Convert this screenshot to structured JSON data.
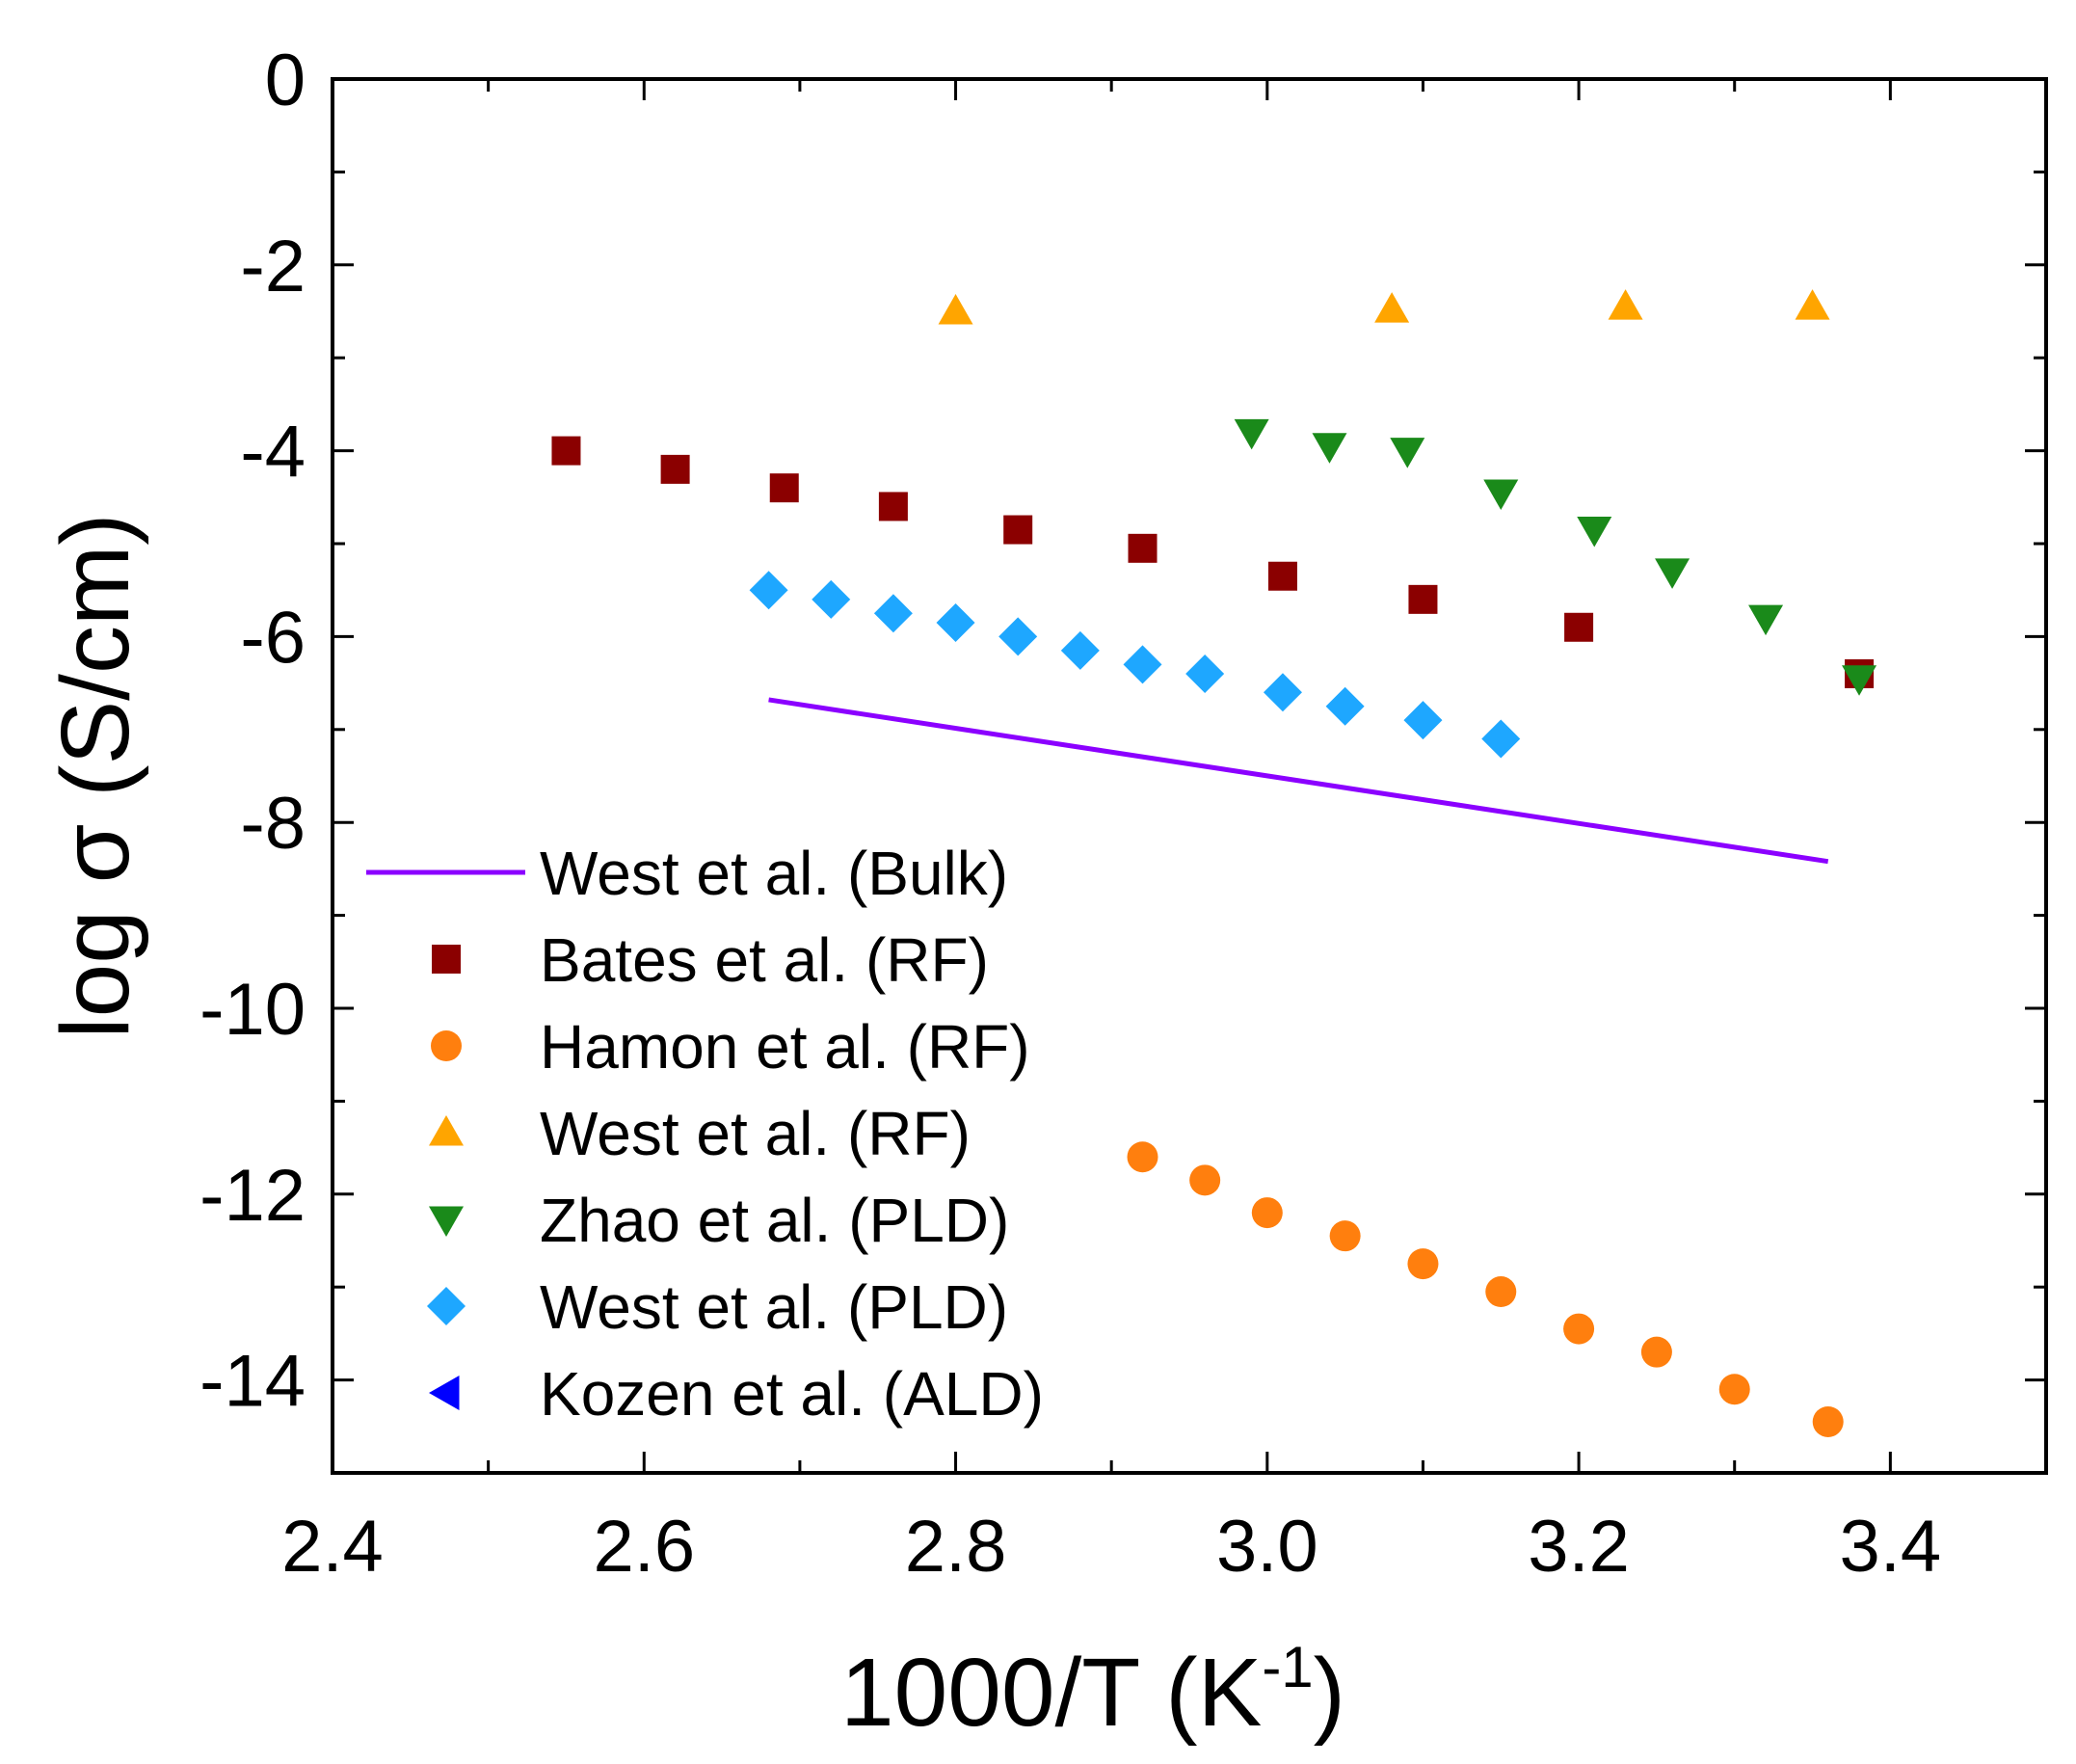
{
  "chart_data": {
    "type": "scatter",
    "title": "",
    "xlabel": "1000/T (K",
    "xlabel_sup": "-1",
    "xlabel_close": ")",
    "ylabel": "log σ (S/cm)",
    "xlim": [
      2.4,
      3.5
    ],
    "ylim": [
      -15,
      0
    ],
    "xticks": [
      2.4,
      2.6,
      2.8,
      3.0,
      3.2,
      3.4
    ],
    "xtick_labels": [
      "2.4",
      "2.6",
      "2.8",
      "3.0",
      "3.2",
      "3.4"
    ],
    "yticks": [
      0,
      -2,
      -4,
      -6,
      -8,
      -10,
      -12,
      -14
    ],
    "ytick_labels": [
      "0",
      "-2",
      "-4",
      "-6",
      "-8",
      "-10",
      "-12",
      "-14"
    ],
    "grid": false,
    "legend_position": "bottom-left",
    "series": [
      {
        "name": "West et al. (Bulk)",
        "marker": "line",
        "color": "#8b00ff",
        "x": [
          2.68,
          3.36
        ],
        "y": [
          -6.68,
          -8.42
        ]
      },
      {
        "name": "Bates et al. (RF)",
        "marker": "square",
        "color": "#8b0000",
        "x": [
          2.55,
          2.62,
          2.69,
          2.76,
          2.84,
          2.92,
          3.01,
          3.1,
          3.2,
          3.38
        ],
        "y": [
          -4.0,
          -4.2,
          -4.4,
          -4.6,
          -4.85,
          -5.05,
          -5.35,
          -5.6,
          -5.9,
          -6.4
        ]
      },
      {
        "name": "Hamon et al. (RF)",
        "marker": "circle",
        "color": "#ff7f0e",
        "x": [
          2.92,
          2.96,
          3.0,
          3.05,
          3.1,
          3.15,
          3.2,
          3.25,
          3.3,
          3.36
        ],
        "y": [
          -11.6,
          -11.85,
          -12.2,
          -12.45,
          -12.75,
          -13.05,
          -13.45,
          -13.7,
          -14.1,
          -14.45
        ]
      },
      {
        "name": "West et al. (RF)",
        "marker": "triangle-up",
        "color": "#ffa500",
        "x": [
          2.8,
          3.08,
          3.23,
          3.35
        ],
        "y": [
          -2.5,
          -2.48,
          -2.45,
          -2.45
        ]
      },
      {
        "name": "Zhao et al. (PLD)",
        "marker": "triangle-down",
        "color": "#1a8a1a",
        "x": [
          2.99,
          3.04,
          3.09,
          3.15,
          3.21,
          3.26,
          3.32,
          3.38
        ],
        "y": [
          -3.8,
          -3.95,
          -4.0,
          -4.45,
          -4.85,
          -5.3,
          -5.8,
          -6.45
        ]
      },
      {
        "name": "West et al. (PLD)",
        "marker": "diamond",
        "color": "#1ea7ff",
        "x": [
          2.68,
          2.72,
          2.76,
          2.8,
          2.84,
          2.88,
          2.92,
          2.96,
          3.01,
          3.05,
          3.1,
          3.15
        ],
        "y": [
          -5.5,
          -5.6,
          -5.75,
          -5.85,
          -6.0,
          -6.15,
          -6.3,
          -6.4,
          -6.6,
          -6.75,
          -6.9,
          -7.1
        ]
      },
      {
        "name": "Kozen et al. (ALD)",
        "marker": "triangle-left",
        "color": "#0000ff",
        "x": [],
        "y": []
      }
    ]
  }
}
